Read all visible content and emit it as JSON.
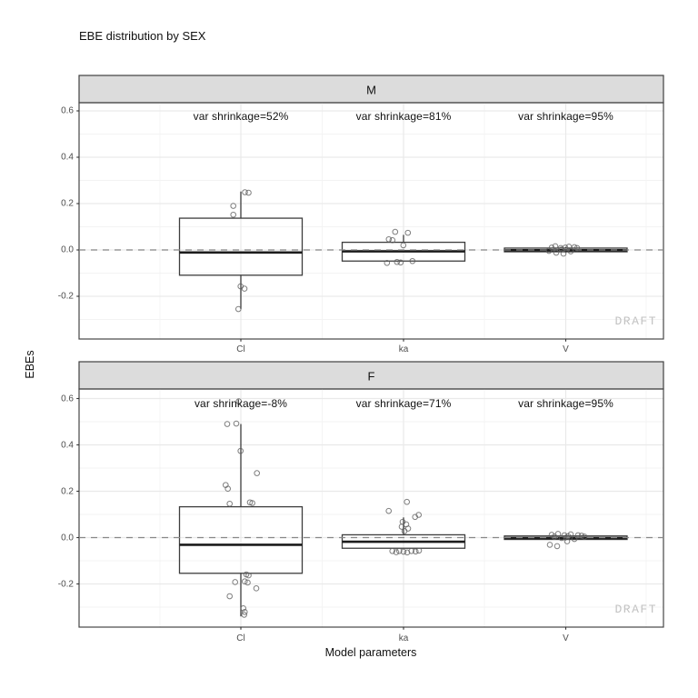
{
  "title": "EBE distribution by SEX",
  "watermark": "DRAFT",
  "axis": {
    "x_label": "Model parameters",
    "y_label": "EBEs",
    "x_categories": [
      "Cl",
      "ka",
      "V"
    ],
    "y_tick_labels": [
      "0.6",
      "0.4",
      "0.2",
      "0.0",
      "-0.2"
    ]
  },
  "colors": {
    "strip_bg": "#dcdcdc",
    "strip_border": "#3f3f3f",
    "panel_border": "#454545",
    "grid_major": "#e9e9e9",
    "grid_minor": "#f3f3f3",
    "box_border": "#3d3d3d",
    "median": "#1c1c1c",
    "zero_line": "#888888",
    "point": "#5f5f5f",
    "tick_mark": "#333333",
    "axis_text": "#4d4d4d",
    "draft": "#c2c2c2"
  },
  "chart_data": {
    "type": "boxplot",
    "facet_by": "SEX",
    "title": "EBE distribution by SEX",
    "xlabel": "Model parameters",
    "ylabel": "EBEs",
    "categories": [
      "Cl",
      "ka",
      "V"
    ],
    "ylim": [
      -0.39,
      0.64
    ],
    "y_major_ticks": [
      0.6,
      0.4,
      0.2,
      0.0,
      -0.2
    ],
    "y_minor_ticks": [
      0.5,
      0.3,
      0.1,
      -0.1,
      -0.3
    ],
    "zero_line": 0,
    "annotation_y": 0.578,
    "grid": true,
    "facets": [
      {
        "label": "M",
        "boxes": [
          {
            "category": "Cl",
            "annotation": "var shrinkage=52%",
            "q1": -0.109,
            "median": -0.011,
            "q3": 0.137,
            "whisker_low": -0.255,
            "whisker_high": 0.252,
            "points": [
              [
                4.5,
                0.249
              ],
              [
                8.5,
                0.247
              ],
              [
                -8.3,
                0.19
              ],
              [
                -8.3,
                0.152
              ],
              [
                -0.3,
                -0.157
              ],
              [
                4,
                -0.167
              ],
              [
                -2.7,
                -0.255
              ]
            ]
          },
          {
            "category": "ka",
            "annotation": "var shrinkage=81%",
            "q1": -0.048,
            "median": -0.006,
            "q3": 0.033,
            "whisker_low": -0.048,
            "whisker_high": 0.065,
            "points": [
              [
                -9.2,
                0.078
              ],
              [
                4.8,
                0.074
              ],
              [
                -16.2,
                0.046
              ],
              [
                -12.2,
                0.042
              ],
              [
                -18.2,
                -0.056
              ],
              [
                -7.2,
                -0.052
              ],
              [
                -3.2,
                -0.054
              ],
              [
                9.8,
                -0.048
              ],
              [
                -0.2,
                0.02
              ]
            ]
          },
          {
            "category": "V",
            "annotation": "var shrinkage=95%",
            "q1": -0.008,
            "median": -0.001,
            "q3": 0.008,
            "whisker_low": -0.013,
            "whisker_high": 0.013,
            "points": [
              [
                -18.5,
                -0.004
              ],
              [
                -15.5,
                0.01
              ],
              [
                -11.5,
                0.016
              ],
              [
                -10.5,
                -0.012
              ],
              [
                -5.5,
                0.008
              ],
              [
                -2.5,
                -0.016
              ],
              [
                -0.5,
                0.01
              ],
              [
                3.5,
                0.014
              ],
              [
                5.5,
                -0.006
              ],
              [
                9.5,
                0.012
              ],
              [
                12.5,
                0.008
              ],
              [
                -4.5,
                0.002
              ]
            ]
          }
        ]
      },
      {
        "label": "F",
        "boxes": [
          {
            "category": "Cl",
            "annotation": "var shrinkage=-8%",
            "q1": -0.154,
            "median": -0.031,
            "q3": 0.133,
            "whisker_low": -0.34,
            "whisker_high": 0.49,
            "points": [
              [
                -2.3,
                0.588
              ],
              [
                -15,
                0.49
              ],
              [
                -5,
                0.492
              ],
              [
                -0.3,
                0.374
              ],
              [
                17.7,
                0.278
              ],
              [
                -16.7,
                0.227
              ],
              [
                -14.3,
                0.211
              ],
              [
                -12.3,
                0.146
              ],
              [
                10,
                0.152
              ],
              [
                12.6,
                0.149
              ],
              [
                6,
                -0.159
              ],
              [
                8.5,
                -0.163
              ],
              [
                -6.3,
                -0.192
              ],
              [
                4.3,
                -0.189
              ],
              [
                7.5,
                -0.194
              ],
              [
                17,
                -0.219
              ],
              [
                -12.3,
                -0.253
              ],
              [
                2.7,
                -0.305
              ],
              [
                4.3,
                -0.321
              ],
              [
                3.7,
                -0.333
              ]
            ]
          },
          {
            "category": "ka",
            "annotation": "var shrinkage=71%",
            "q1": -0.046,
            "median": -0.018,
            "q3": 0.012,
            "whisker_low": -0.046,
            "whisker_high": 0.087,
            "points": [
              [
                3.7,
                0.154
              ],
              [
                -16.3,
                0.115
              ],
              [
                16.7,
                0.098
              ],
              [
                12.7,
                0.089
              ],
              [
                -1,
                0.068
              ],
              [
                3,
                0.057
              ],
              [
                -2,
                0.047
              ],
              [
                5,
                0.039
              ],
              [
                1,
                0.028
              ],
              [
                -12.3,
                -0.058
              ],
              [
                -8,
                -0.063
              ],
              [
                -4.7,
                -0.058
              ],
              [
                0,
                -0.061
              ],
              [
                4,
                -0.064
              ],
              [
                8.7,
                -0.058
              ],
              [
                13.3,
                -0.06
              ],
              [
                17,
                -0.056
              ]
            ]
          },
          {
            "category": "V",
            "annotation": "var shrinkage=95%",
            "q1": -0.008,
            "median": -0.002,
            "q3": 0.007,
            "whisker_low": -0.012,
            "whisker_high": 0.012,
            "points": [
              [
                -17.5,
                -0.031
              ],
              [
                -9.5,
                -0.037
              ],
              [
                -15.5,
                0.012
              ],
              [
                -12.5,
                0.004
              ],
              [
                -8.5,
                0.016
              ],
              [
                -4.5,
                -0.002
              ],
              [
                -1.5,
                0.01
              ],
              [
                2.5,
                0.006
              ],
              [
                5.5,
                0.014
              ],
              [
                9.5,
                -0.006
              ],
              [
                13.5,
                0.01
              ],
              [
                17.5,
                0.008
              ],
              [
                20.5,
                0.004
              ],
              [
                1.5,
                -0.016
              ]
            ]
          }
        ]
      }
    ]
  }
}
